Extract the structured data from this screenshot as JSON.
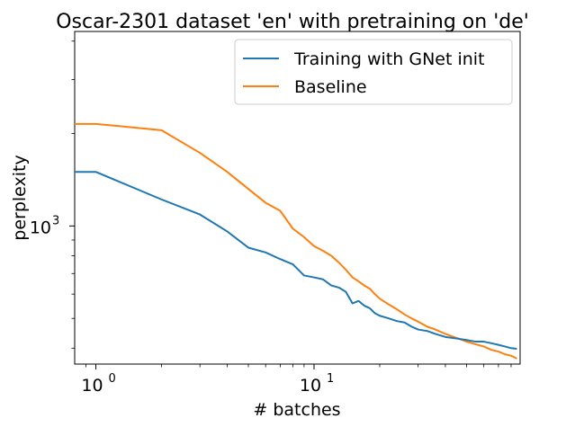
{
  "chart_data": {
    "type": "line",
    "title": "Oscar-2301 dataset 'en' with pretraining on 'de'",
    "xlabel": "# batches",
    "ylabel": "perplexity",
    "xscale": "log",
    "yscale": "log",
    "xlim": [
      0.8,
      88
    ],
    "ylim": [
      355,
      4300
    ],
    "x_ticks": [
      {
        "base": "10",
        "exp": "0",
        "value": 1
      },
      {
        "base": "10",
        "exp": "1",
        "value": 10
      }
    ],
    "y_ticks": [
      {
        "base": "10",
        "exp": "3",
        "value": 1000
      }
    ],
    "legend": {
      "placement": "top-right"
    },
    "grid": false,
    "series": [
      {
        "name": "Training with GNet init",
        "color": "#1f77b4",
        "x": [
          0.8,
          1,
          2,
          3,
          4,
          5,
          6,
          7,
          8,
          9,
          10,
          11,
          12,
          13,
          14,
          15,
          16,
          17,
          18,
          19,
          20,
          22,
          24,
          26,
          28,
          30,
          33,
          36,
          40,
          45,
          50,
          55,
          60,
          65,
          70,
          75,
          80,
          85
        ],
        "values": [
          1500,
          1500,
          1220,
          1090,
          960,
          850,
          820,
          780,
          750,
          690,
          680,
          670,
          640,
          630,
          610,
          560,
          570,
          550,
          540,
          520,
          510,
          500,
          490,
          485,
          470,
          460,
          455,
          445,
          435,
          430,
          425,
          420,
          420,
          415,
          410,
          405,
          400,
          398
        ]
      },
      {
        "name": "Baseline",
        "color": "#ff7f0e",
        "x": [
          0.8,
          1,
          2,
          3,
          4,
          5,
          6,
          7,
          8,
          9,
          10,
          11,
          12,
          13,
          14,
          15,
          16,
          17,
          18,
          19,
          20,
          22,
          24,
          26,
          28,
          30,
          33,
          36,
          40,
          45,
          50,
          55,
          60,
          65,
          70,
          75,
          80,
          85
        ],
        "values": [
          2150,
          2150,
          2050,
          1730,
          1500,
          1320,
          1190,
          1120,
          980,
          920,
          860,
          830,
          800,
          760,
          720,
          680,
          660,
          640,
          625,
          600,
          580,
          555,
          535,
          515,
          500,
          488,
          470,
          460,
          445,
          432,
          420,
          412,
          405,
          395,
          390,
          382,
          378,
          370
        ]
      }
    ]
  }
}
